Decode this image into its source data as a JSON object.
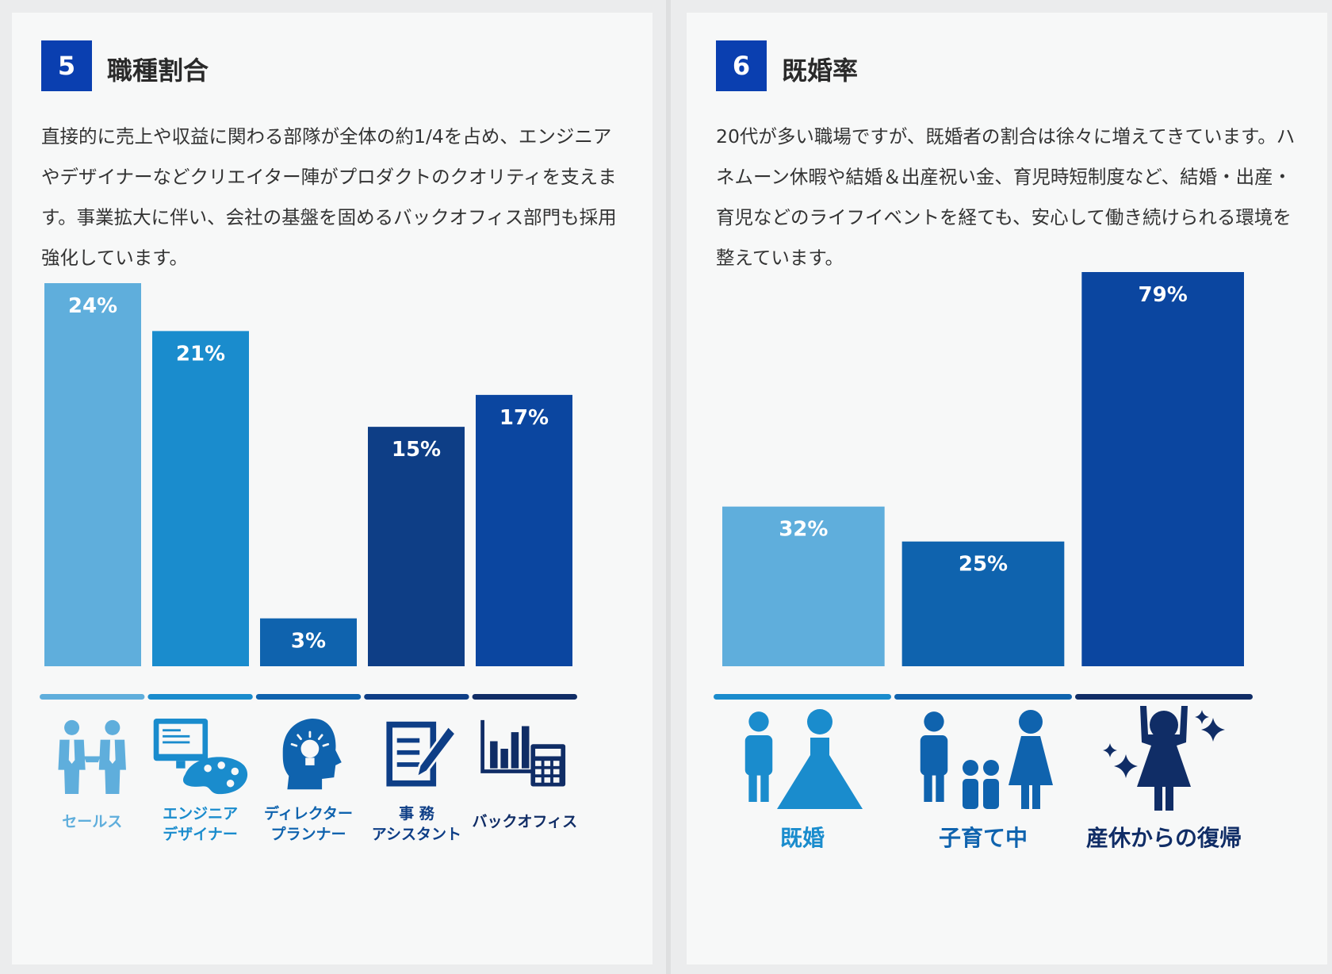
{
  "left_panel": {
    "number": "5",
    "title": "職種割合",
    "description": "直接的に売上や収益に関わる部隊が全体の約1/4を占め、エンジニアやデザイナーなどクリエイター陣がプロダクトのクオリティを支えます。事業拡大に伴い、会社の基盤を固めるバックオフィス部門も採用強化しています。"
  },
  "right_panel": {
    "number": "6",
    "title": "既婚率",
    "description": "20代が多い職場ですが、既婚者の割合は徐々に増えてきています。ハネムーン休暇や結婚＆出産祝い金、育児時短制度など、結婚・出産・育児などのライフイベントを経ても、安心して働き続けられる環境を整えています。"
  },
  "chart_data": [
    {
      "type": "bar",
      "categories": [
        "セールス",
        "エンジニア\nデザイナー",
        "ディレクター\nプランナー",
        "事 務\nアシスタント",
        "バックオフィス"
      ],
      "values": [
        24,
        21,
        3,
        15,
        17
      ],
      "value_labels": [
        "24%",
        "21%",
        "3%",
        "15%",
        "17%"
      ],
      "icons": [
        "businessmen-icon",
        "monitor-palette-icon",
        "head-lightbulb-icon",
        "document-pencil-icon",
        "chart-calculator-icon"
      ],
      "colors": [
        "#5faedc",
        "#1a8ccd",
        "#0f63ae",
        "#0e3e86",
        "#0b46a0"
      ],
      "underline_colors": [
        "#5faedc",
        "#1a8ccd",
        "#0f63ae",
        "#0e3e86",
        "#102d66"
      ],
      "ylim": [
        0,
        24
      ]
    },
    {
      "type": "bar",
      "categories": [
        "既婚",
        "子育て中",
        "産休からの復帰"
      ],
      "values": [
        32,
        25,
        79
      ],
      "value_labels": [
        "32%",
        "25%",
        "79%"
      ],
      "icons": [
        "married-couple-icon",
        "family-icon",
        "celebrating-woman-icon"
      ],
      "colors": [
        "#5faedc",
        "#0f63ae",
        "#0b46a0"
      ],
      "underline_colors": [
        "#1a8ccd",
        "#0f63ae",
        "#102d66"
      ],
      "label_colors": [
        "#1a8ccd",
        "#0f63ae",
        "#102d66"
      ],
      "ylim": [
        0,
        79
      ]
    }
  ]
}
